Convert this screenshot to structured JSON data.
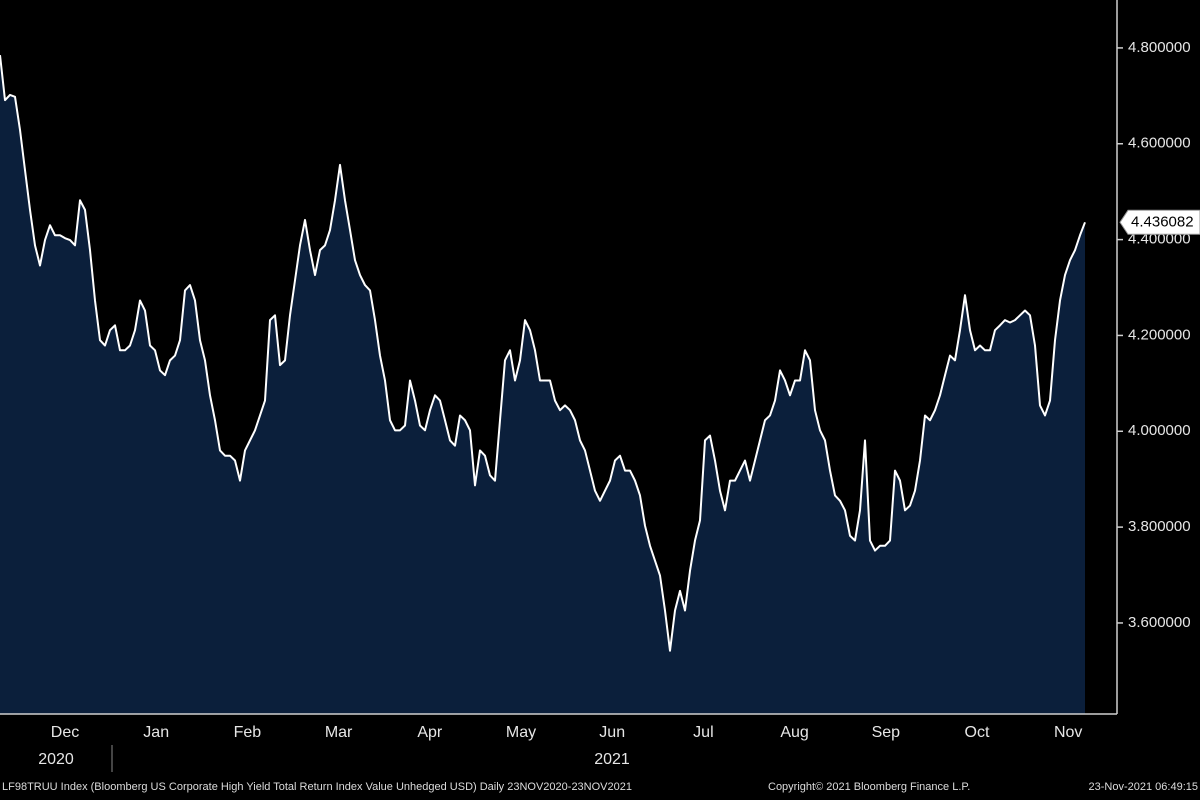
{
  "chart_data": {
    "type": "area",
    "color": "#0b1f3b",
    "line_color": "#ffffff",
    "month_labels": [
      "Dec",
      "Jan",
      "Feb",
      "Mar",
      "Apr",
      "May",
      "Jun",
      "Jul",
      "Aug",
      "Sep",
      "Oct",
      "Nov"
    ],
    "year_labels": [
      "2020",
      "2021"
    ],
    "ylim": [
      3.41,
      4.9
    ],
    "yticks": [
      {
        "value": 3.6,
        "label": "3.600000"
      },
      {
        "value": 3.8,
        "label": "3.800000"
      },
      {
        "value": 4.0,
        "label": "4.000000"
      },
      {
        "value": 4.2,
        "label": "4.200000"
      },
      {
        "value": 4.4,
        "label": "4.400000"
      },
      {
        "value": 4.6,
        "label": "4.600000"
      },
      {
        "value": 4.8,
        "label": "4.800000"
      }
    ],
    "values": [
      4.785,
      4.691,
      4.702,
      4.698,
      4.629,
      4.545,
      4.462,
      4.388,
      4.346,
      4.399,
      4.43,
      4.409,
      4.409,
      4.403,
      4.399,
      4.388,
      4.482,
      4.462,
      4.378,
      4.273,
      4.19,
      4.179,
      4.211,
      4.221,
      4.169,
      4.169,
      4.179,
      4.211,
      4.273,
      4.252,
      4.179,
      4.169,
      4.127,
      4.117,
      4.148,
      4.158,
      4.19,
      4.294,
      4.305,
      4.273,
      4.19,
      4.148,
      4.075,
      4.023,
      3.96,
      3.949,
      3.949,
      3.939,
      3.897,
      3.96,
      3.981,
      4.002,
      4.033,
      4.064,
      4.232,
      4.242,
      4.138,
      4.148,
      4.242,
      4.315,
      4.388,
      4.441,
      4.378,
      4.326,
      4.378,
      4.388,
      4.42,
      4.482,
      4.556,
      4.482,
      4.42,
      4.357,
      4.326,
      4.305,
      4.294,
      4.232,
      4.158,
      4.106,
      4.023,
      4.002,
      4.002,
      4.012,
      4.106,
      4.064,
      4.012,
      4.002,
      4.044,
      4.075,
      4.064,
      4.023,
      3.981,
      3.97,
      4.033,
      4.023,
      4.002,
      3.887,
      3.96,
      3.949,
      3.908,
      3.897,
      4.023,
      4.148,
      4.169,
      4.106,
      4.148,
      4.232,
      4.211,
      4.169,
      4.106,
      4.106,
      4.106,
      4.064,
      4.044,
      4.054,
      4.044,
      4.023,
      3.981,
      3.96,
      3.918,
      3.876,
      3.855,
      3.876,
      3.897,
      3.939,
      3.949,
      3.918,
      3.918,
      3.897,
      3.866,
      3.803,
      3.761,
      3.73,
      3.699,
      3.626,
      3.542,
      3.626,
      3.667,
      3.626,
      3.709,
      3.772,
      3.814,
      3.981,
      3.991,
      3.939,
      3.876,
      3.835,
      3.897,
      3.897,
      3.918,
      3.939,
      3.897,
      3.939,
      3.981,
      4.023,
      4.033,
      4.064,
      4.127,
      4.106,
      4.075,
      4.106,
      4.106,
      4.169,
      4.148,
      4.044,
      4.002,
      3.981,
      3.918,
      3.866,
      3.855,
      3.835,
      3.782,
      3.772,
      3.835,
      3.981,
      3.772,
      3.751,
      3.761,
      3.761,
      3.772,
      3.918,
      3.897,
      3.835,
      3.845,
      3.876,
      3.939,
      4.033,
      4.023,
      4.044,
      4.075,
      4.117,
      4.158,
      4.148,
      4.211,
      4.284,
      4.211,
      4.169,
      4.179,
      4.169,
      4.169,
      4.211,
      4.221,
      4.232,
      4.227,
      4.232,
      4.242,
      4.252,
      4.242,
      4.179,
      4.054,
      4.033,
      4.064,
      4.19,
      4.273,
      4.326,
      4.357,
      4.378,
      4.409,
      4.436082
    ],
    "footer": {
      "description": "LF98TRUU Index (Bloomberg US Corporate High Yield Total Return Index Value Unhedged USD)  Daily 23NOV2020-23NOV2021",
      "copyright": "Copyright© 2021 Bloomberg Finance L.P.",
      "timestamp": "23-Nov-2021 06:49:15"
    }
  }
}
